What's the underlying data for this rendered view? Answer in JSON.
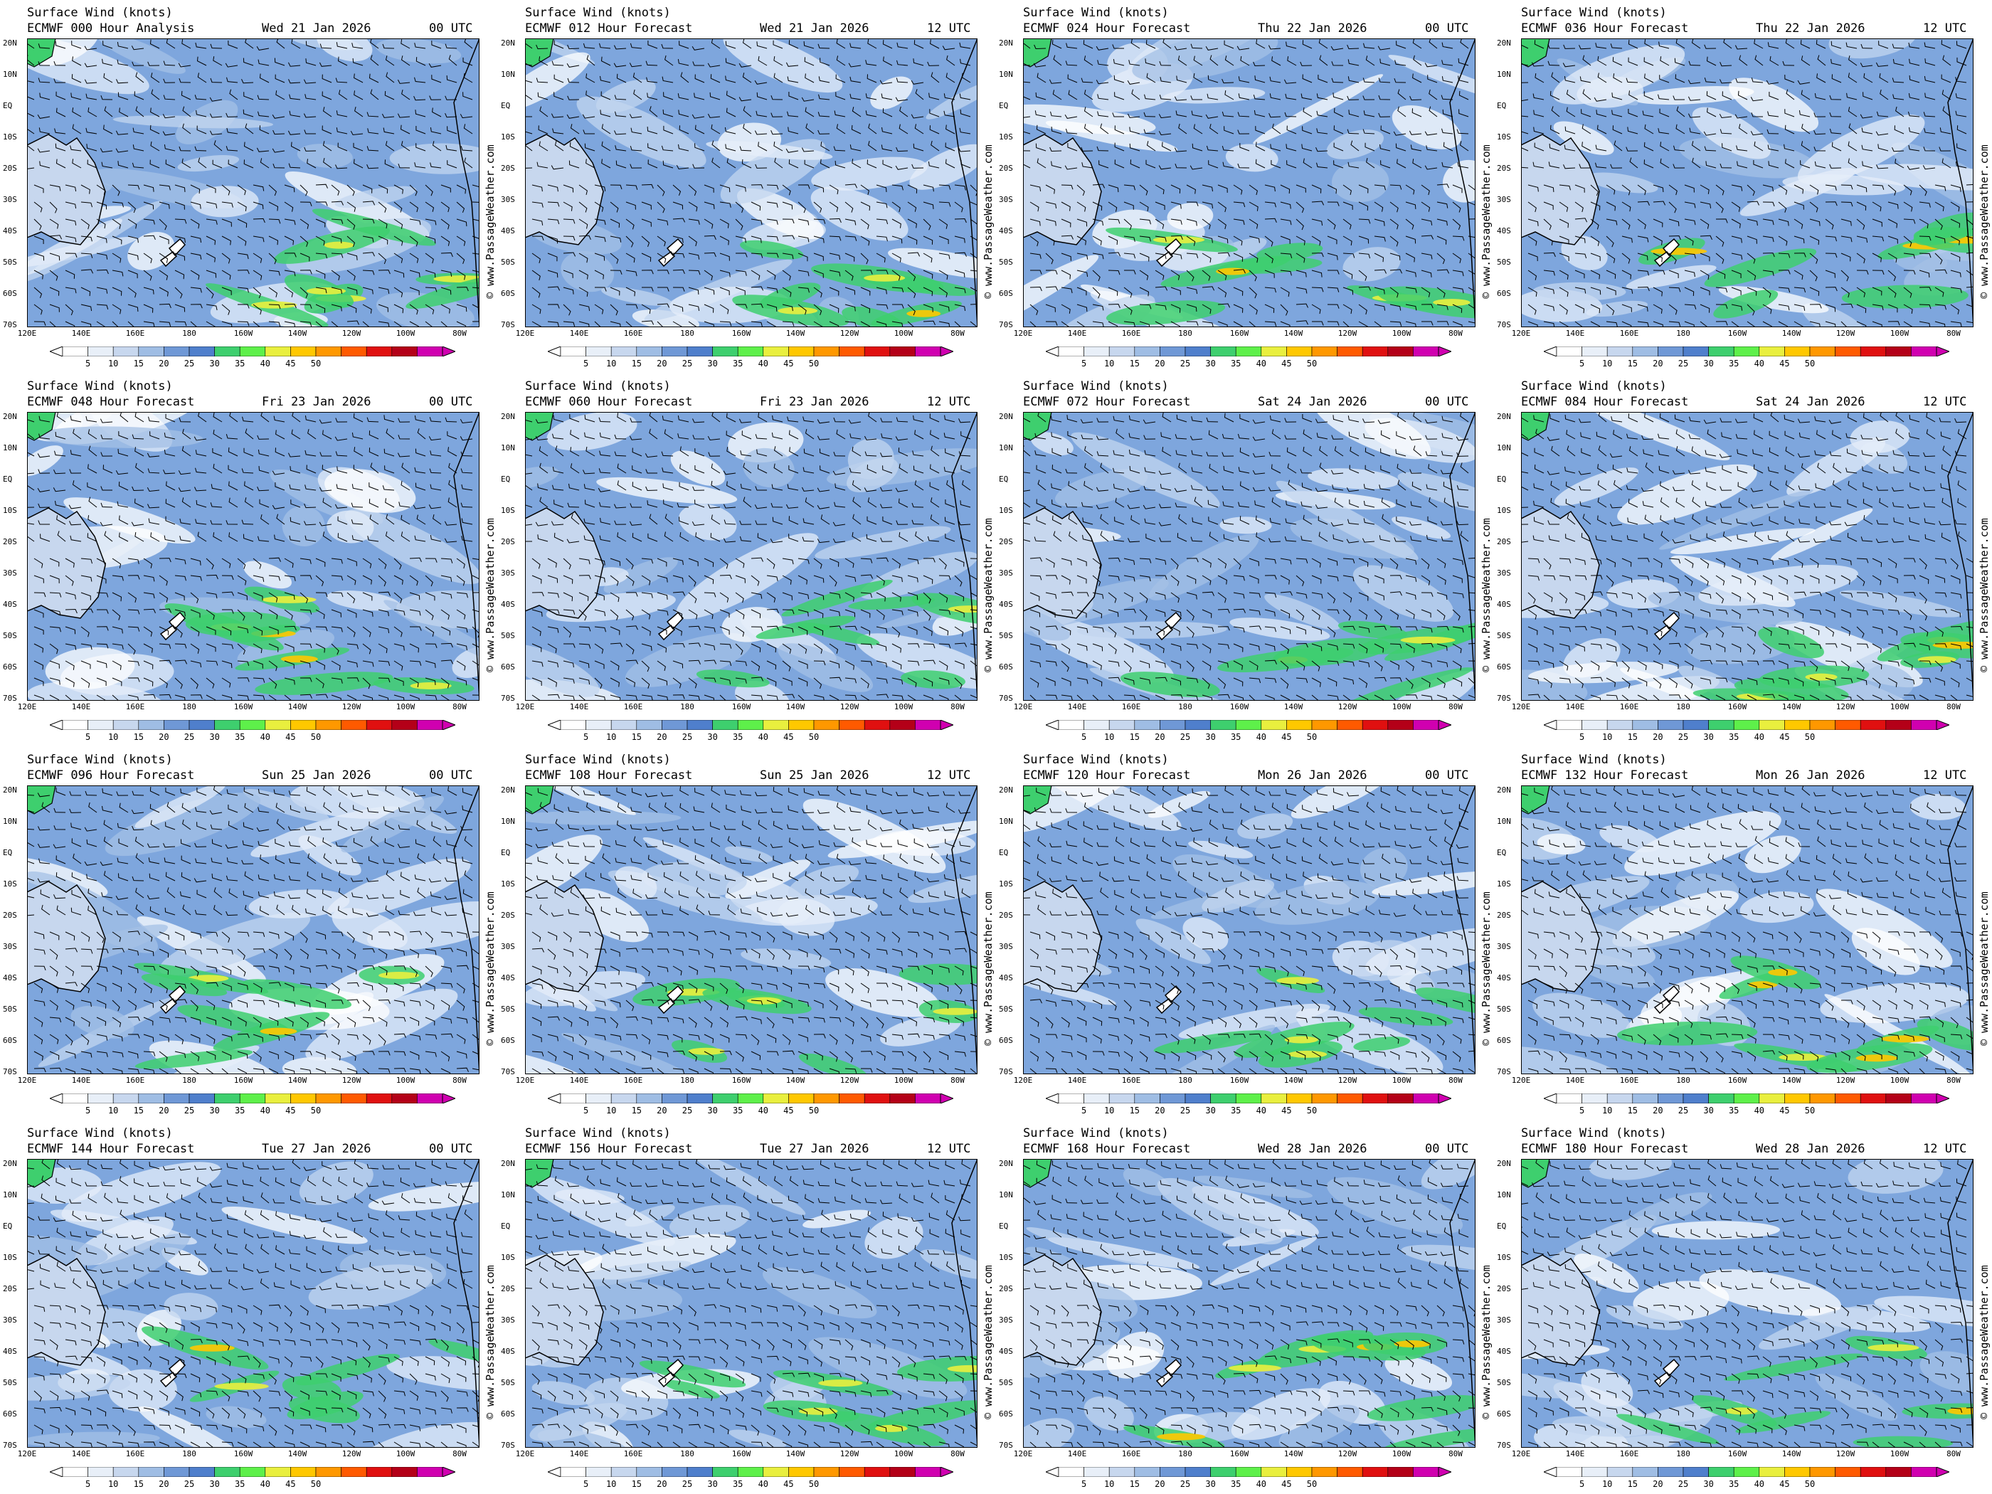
{
  "panel_title": "Surface Wind (knots)",
  "credit": "© www.PassageWeather.com",
  "lat_labels": [
    "20N",
    "10N",
    "EQ",
    "10S",
    "20S",
    "30S",
    "40S",
    "50S",
    "60S",
    "70S"
  ],
  "lon_labels": [
    "120E",
    "140E",
    "160E",
    "180",
    "160W",
    "140W",
    "120W",
    "100W",
    "80W"
  ],
  "colorbar": {
    "ticks": [
      "5",
      "10",
      "15",
      "20",
      "25",
      "30",
      "35",
      "40",
      "45",
      "50"
    ],
    "colors": [
      "#ffffff",
      "#e8eff8",
      "#c7d7ee",
      "#9fbde4",
      "#6f98d6",
      "#4f7fcc",
      "#3ecf6e",
      "#5ef04a",
      "#e9ef3e",
      "#ffc800",
      "#ff9800",
      "#ff5a00",
      "#e01010",
      "#b40018",
      "#d000b0"
    ]
  },
  "panels": [
    {
      "model": "ECMWF 000 Hour Analysis",
      "date": "Wed 21 Jan 2026",
      "time": "00 UTC"
    },
    {
      "model": "ECMWF 012 Hour Forecast",
      "date": "Wed 21 Jan 2026",
      "time": "12 UTC"
    },
    {
      "model": "ECMWF 024 Hour Forecast",
      "date": "Thu 22 Jan 2026",
      "time": "00 UTC"
    },
    {
      "model": "ECMWF 036 Hour Forecast",
      "date": "Thu 22 Jan 2026",
      "time": "12 UTC"
    },
    {
      "model": "ECMWF 048 Hour Forecast",
      "date": "Fri 23 Jan 2026",
      "time": "00 UTC"
    },
    {
      "model": "ECMWF 060 Hour Forecast",
      "date": "Fri 23 Jan 2026",
      "time": "12 UTC"
    },
    {
      "model": "ECMWF 072 Hour Forecast",
      "date": "Sat 24 Jan 2026",
      "time": "00 UTC"
    },
    {
      "model": "ECMWF 084 Hour Forecast",
      "date": "Sat 24 Jan 2026",
      "time": "12 UTC"
    },
    {
      "model": "ECMWF 096 Hour Forecast",
      "date": "Sun 25 Jan 2026",
      "time": "00 UTC"
    },
    {
      "model": "ECMWF 108 Hour Forecast",
      "date": "Sun 25 Jan 2026",
      "time": "12 UTC"
    },
    {
      "model": "ECMWF 120 Hour Forecast",
      "date": "Mon 26 Jan 2026",
      "time": "00 UTC"
    },
    {
      "model": "ECMWF 132 Hour Forecast",
      "date": "Mon 26 Jan 2026",
      "time": "12 UTC"
    },
    {
      "model": "ECMWF 144 Hour Forecast",
      "date": "Tue 27 Jan 2026",
      "time": "00 UTC"
    },
    {
      "model": "ECMWF 156 Hour Forecast",
      "date": "Tue 27 Jan 2026",
      "time": "12 UTC"
    },
    {
      "model": "ECMWF 168 Hour Forecast",
      "date": "Wed 28 Jan 2026",
      "time": "00 UTC"
    },
    {
      "model": "ECMWF 180 Hour Forecast",
      "date": "Wed 28 Jan 2026",
      "time": "12 UTC"
    }
  ]
}
